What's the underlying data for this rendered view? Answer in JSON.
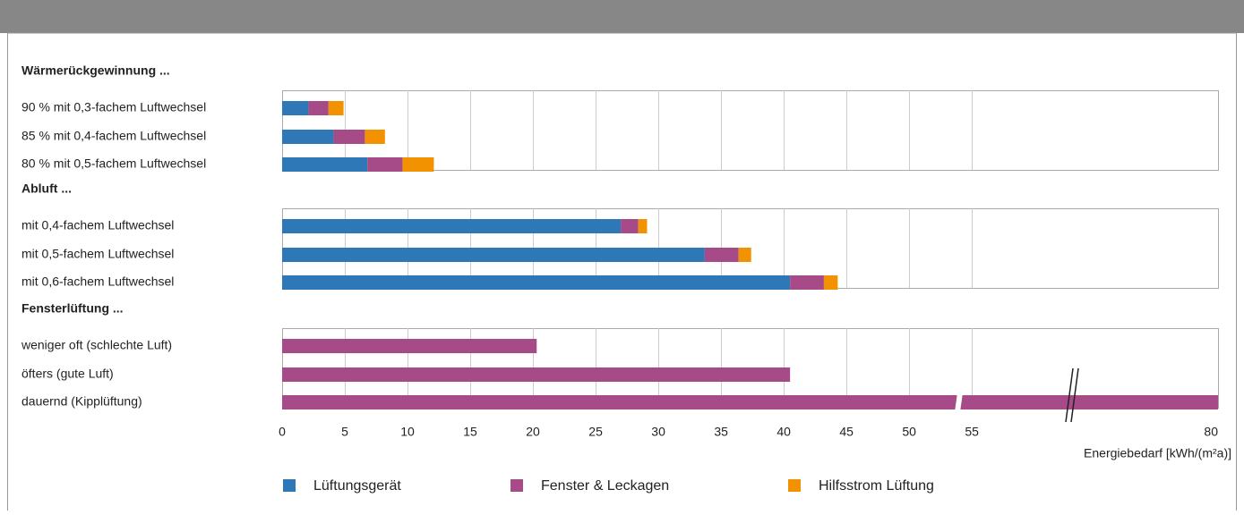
{
  "chart_data": {
    "type": "stacked-bar-horizontal",
    "groups": [
      {
        "title": "Wärmerückgewinnung ...",
        "categories": [
          "90 % mit 0,3-fachem Luftwechsel",
          "85 % mit 0,4-fachem Luftwechsel",
          "80 % mit 0,5-fachem Luftwechsel"
        ]
      },
      {
        "title": "Abluft ...",
        "categories": [
          "mit 0,4-fachem Luftwechsel",
          "mit 0,5-fachem Luftwechsel",
          "mit 0,6-fachem Luftwechsel"
        ]
      },
      {
        "title": "Fensterlüftung ...",
        "categories": [
          "weniger oft (schlechte Luft)",
          "öfters (gute Luft)",
          "dauernd (Kipplüftung)"
        ]
      }
    ],
    "series": [
      {
        "name": "Lüftungsgerät",
        "color": "#2e78b8",
        "values": [
          2.1,
          4.1,
          6.8,
          27,
          33.7,
          40.5,
          null,
          null,
          null
        ]
      },
      {
        "name": "Fenster & Leckagen",
        "color": "#a64b88",
        "values": [
          1.6,
          2.5,
          2.8,
          1.4,
          2.7,
          2.7,
          20.3,
          40.5,
          80
        ]
      },
      {
        "name": "Hilfsstrom Lüftung",
        "color": "#f39200",
        "values": [
          1.2,
          1.6,
          2.5,
          0.7,
          1.0,
          1.1,
          null,
          null,
          null
        ]
      }
    ],
    "xlabel": "Energiebedarf [kWh/(m²a)]",
    "xlim": [
      0,
      80
    ],
    "xticks": [
      0,
      5,
      10,
      15,
      20,
      25,
      30,
      35,
      40,
      45,
      50,
      55,
      80
    ],
    "axis_break": true,
    "grid": true
  }
}
